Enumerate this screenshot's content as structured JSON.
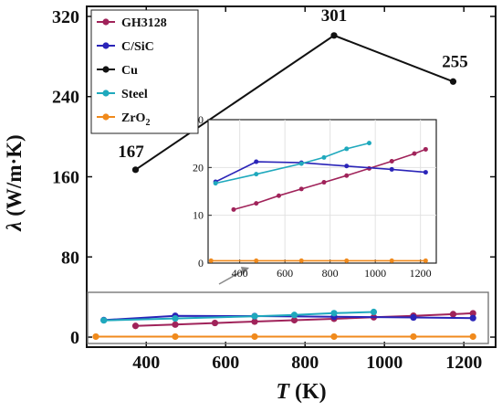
{
  "chart_data": {
    "type": "line",
    "main": {
      "xlabel_var": "T",
      "xlabel_unit": " (K)",
      "ylabel_var": "λ",
      "ylabel_unit": " (W/m·K)",
      "xlim": [
        250,
        1280
      ],
      "ylim": [
        -10,
        330
      ],
      "xticks": [
        400,
        600,
        800,
        1000,
        1200
      ],
      "yticks": [
        0,
        80,
        160,
        240,
        320
      ],
      "xtick_labels": [
        "400",
        "600",
        "800",
        "1000",
        "1200"
      ],
      "ytick_labels": [
        "0",
        "80",
        "160",
        "240",
        "320"
      ],
      "legend_position": "top-left"
    },
    "series": [
      {
        "name": "GH3128",
        "color": "#a0235a",
        "x": [
          373,
          473,
          573,
          673,
          773,
          873,
          973,
          1073,
          1173,
          1223
        ],
        "y": [
          11.2,
          12.5,
          14.1,
          15.5,
          16.9,
          18.3,
          19.8,
          21.3,
          22.9,
          23.8
        ]
      },
      {
        "name": "C/SiC",
        "color": "#2a24b8",
        "x": [
          293,
          473,
          673,
          873,
          1073,
          1223
        ],
        "y": [
          17.0,
          21.2,
          21.0,
          20.3,
          19.6,
          19.0
        ]
      },
      {
        "name": "Cu",
        "color": "#111111",
        "x": [
          373,
          873,
          1173
        ],
        "y": [
          167,
          301,
          255
        ],
        "point_labels": [
          "167",
          "301",
          "255"
        ]
      },
      {
        "name": "Steel",
        "color": "#1fa9bd",
        "x": [
          293,
          473,
          673,
          773,
          873,
          973
        ],
        "y": [
          16.7,
          18.6,
          20.8,
          22.1,
          23.9,
          25.1
        ]
      },
      {
        "name": "ZrO",
        "name_sub": "2",
        "color": "#f08a1c",
        "x": [
          273,
          473,
          673,
          873,
          1073,
          1223
        ],
        "y": [
          0.5,
          0.5,
          0.5,
          0.5,
          0.5,
          0.5
        ]
      }
    ],
    "inset": {
      "xlim": [
        260,
        1270
      ],
      "ylim": [
        0,
        30
      ],
      "xticks": [
        400,
        600,
        800,
        1000,
        1200
      ],
      "yticks": [
        0,
        10,
        20,
        30
      ],
      "xtick_labels": [
        "400",
        "600",
        "800",
        "1000",
        "1200"
      ],
      "ytick_labels": [
        "0",
        "10",
        "20",
        "30"
      ],
      "series_shown": [
        "GH3128",
        "C/SiC",
        "Steel",
        "ZrO"
      ]
    }
  }
}
